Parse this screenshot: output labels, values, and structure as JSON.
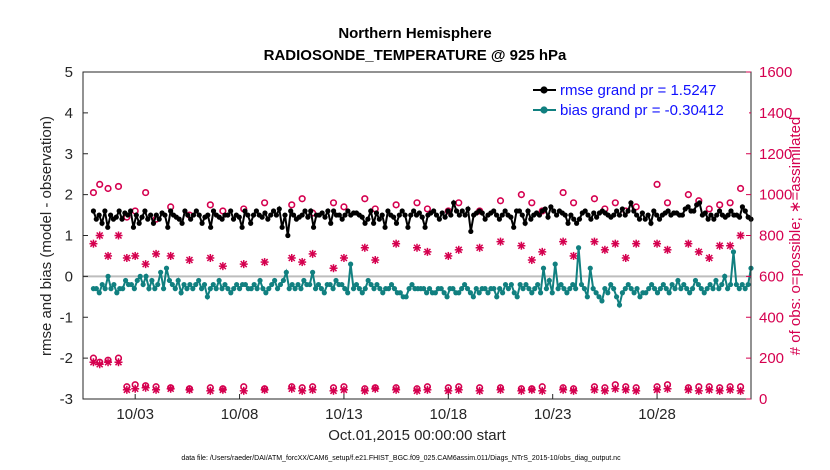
{
  "chart_data": {
    "type": "line",
    "title_line1": "Northern Hemisphere",
    "title_line2": "RADIOSONDE_TEMPERATURE @ 925 hPa",
    "xlabel": "Oct.01,2015 00:00:00 start",
    "ylabel": "rmse and bias (model - observation)",
    "y2label": "# of obs: o=possible; ∗=assimilated",
    "footnote": "data file: /Users/raeder/DAI/ATM_forcXX/CAM6_setup/f.e21.FHIST_BGC.f09_025.CAM6assim.011/Diags_NTrS_2015-10/obs_diag_output.nc",
    "xlim": [
      0.5,
      32.5
    ],
    "ylim": [
      -3,
      5
    ],
    "y2lim": [
      0,
      1600
    ],
    "xticks": [
      3,
      8,
      13,
      18,
      23,
      28
    ],
    "xtick_labels": [
      "10/03",
      "10/08",
      "10/13",
      "10/18",
      "10/23",
      "10/28"
    ],
    "yticks": [
      -3,
      -2,
      -1,
      0,
      1,
      2,
      3,
      4,
      5
    ],
    "y2ticks": [
      0,
      200,
      400,
      600,
      800,
      1000,
      1200,
      1400,
      1600
    ],
    "legend_position": "top-right",
    "colors": {
      "rmse": "#000000",
      "bias": "#118080",
      "obs": "#d5004f",
      "zero": "#bdbdbd"
    },
    "series": [
      {
        "name": "rmse",
        "label": "rmse grand pr = 1.5247",
        "values": [
          1.6,
          1.4,
          1.5,
          1.3,
          1.6,
          1.2,
          1.5,
          1.4,
          1.45,
          1.6,
          1.4,
          1.55,
          1.5,
          1.6,
          1.2,
          1.5,
          1.3,
          1.45,
          1.6,
          1.4,
          1.5,
          1.3,
          1.5,
          1.4,
          1.55,
          1.5,
          1.2,
          1.6,
          1.5,
          1.45,
          1.4,
          1.3,
          1.6,
          1.5,
          1.4,
          1.5,
          1.6,
          1.5,
          1.3,
          1.45,
          1.5,
          1.2,
          1.6,
          1.5,
          1.45,
          1.4,
          1.5,
          1.5,
          1.6,
          1.4,
          1.5,
          1.45,
          1.2,
          1.6,
          1.5,
          1.3,
          1.5,
          1.6,
          1.5,
          1.45,
          1.55,
          1.4,
          1.5,
          1.6,
          1.5,
          1.65,
          1.2,
          1.5,
          1.0,
          1.6,
          1.5,
          1.4,
          1.45,
          1.5,
          1.6,
          1.45,
          1.6,
          1.2,
          1.5,
          1.5,
          1.55,
          1.45,
          1.6,
          1.3,
          1.6,
          1.5,
          1.5,
          1.4,
          1.5,
          1.6,
          1.5,
          1.55,
          1.55,
          1.5,
          1.45,
          1.3,
          1.4,
          1.6,
          1.3,
          1.55,
          1.4,
          1.5,
          1.2,
          1.6,
          1.5,
          1.45,
          1.3,
          1.5,
          1.6,
          1.5,
          1.2,
          1.5,
          1.6,
          1.5,
          1.55,
          1.45,
          1.2,
          1.5,
          1.55,
          1.6,
          1.5,
          1.4,
          1.55,
          1.45,
          1.6,
          1.5,
          1.8,
          1.6,
          1.5,
          1.6,
          1.5,
          1.65,
          1.1,
          1.5,
          1.55,
          1.6,
          1.55,
          1.4,
          1.5,
          1.55,
          1.6,
          1.5,
          1.4,
          1.5,
          1.6,
          1.5,
          1.45,
          1.2,
          1.6,
          1.6,
          1.5,
          1.3,
          1.6,
          1.4,
          1.5,
          1.55,
          1.5,
          1.6,
          1.65,
          1.45,
          1.7,
          1.6,
          1.5,
          1.6,
          1.55,
          1.5,
          1.3,
          1.5,
          1.4,
          1.3,
          1.4,
          1.55,
          1.6,
          1.5,
          1.4,
          1.55,
          1.45,
          1.55,
          1.6,
          1.55,
          1.5,
          1.45,
          1.5,
          1.6,
          1.5,
          1.65,
          1.5,
          1.6,
          1.8,
          1.6,
          1.5,
          1.4,
          1.55,
          1.4,
          1.5,
          1.3,
          1.6,
          1.5,
          1.4,
          1.5,
          1.55,
          1.6,
          1.5,
          1.55,
          1.55,
          1.5,
          1.5,
          1.65,
          1.7,
          1.6,
          1.6,
          1.75,
          1.8,
          1.5,
          1.55,
          1.4,
          1.5,
          1.4,
          1.5,
          1.6,
          1.5,
          1.45,
          1.5,
          1.6,
          1.5,
          1.5,
          1.45,
          1.7,
          1.6,
          1.45,
          1.4
        ]
      },
      {
        "name": "bias",
        "label": "bias grand pr = -0.30412",
        "values": [
          -0.3,
          -0.3,
          -0.4,
          -0.2,
          -0.3,
          0.0,
          -0.3,
          -0.2,
          -0.4,
          -0.3,
          -0.3,
          -0.1,
          -0.2,
          -0.2,
          -0.3,
          -0.1,
          0.0,
          -0.2,
          0.0,
          -0.3,
          -0.1,
          -0.3,
          -0.2,
          0.1,
          -0.3,
          0.2,
          -0.1,
          -0.2,
          -0.3,
          -0.1,
          -0.4,
          -0.2,
          -0.3,
          -0.2,
          -0.3,
          -0.2,
          -0.1,
          -0.3,
          -0.2,
          -0.5,
          -0.3,
          -0.2,
          -0.3,
          -0.1,
          -0.3,
          -0.2,
          -0.3,
          -0.4,
          -0.3,
          -0.2,
          -0.3,
          -0.2,
          -0.2,
          -0.3,
          -0.3,
          -0.2,
          -0.3,
          -0.1,
          -0.3,
          -0.4,
          -0.3,
          -0.2,
          -0.1,
          -0.3,
          -0.2,
          -0.1,
          0.1,
          -0.3,
          -0.2,
          -0.3,
          -0.2,
          -0.3,
          -0.1,
          -0.2,
          -0.2,
          0.1,
          -0.3,
          -0.2,
          -0.3,
          -0.4,
          -0.2,
          -0.2,
          -0.3,
          -0.1,
          -0.2,
          -0.2,
          -0.3,
          -0.4,
          0.3,
          -0.3,
          -0.2,
          -0.3,
          -0.4,
          -0.3,
          -0.1,
          -0.2,
          -0.3,
          -0.2,
          -0.3,
          -0.4,
          -0.3,
          -0.3,
          -0.2,
          -0.3,
          -0.4,
          -0.4,
          -0.5,
          -0.5,
          -0.3,
          -0.2,
          -0.3,
          -0.3,
          -0.3,
          -0.3,
          -0.4,
          -0.3,
          -0.4,
          -0.4,
          -0.3,
          -0.3,
          -0.4,
          -0.5,
          -0.3,
          -0.3,
          -0.4,
          -0.4,
          -0.3,
          -0.2,
          -0.3,
          -0.4,
          -0.5,
          -0.3,
          -0.4,
          -0.3,
          -0.3,
          -0.4,
          -0.3,
          -0.3,
          -0.5,
          -0.3,
          -0.4,
          -0.2,
          -0.3,
          -0.2,
          -0.4,
          -0.5,
          -0.2,
          -0.3,
          -0.2,
          -0.3,
          -0.4,
          -0.3,
          -0.2,
          -0.4,
          0.2,
          -0.3,
          -0.1,
          -0.4,
          0.3,
          -0.3,
          -0.2,
          -0.3,
          -0.4,
          -0.3,
          -0.2,
          -0.3,
          0.7,
          -0.2,
          -0.3,
          -0.5,
          0.2,
          -0.3,
          -0.4,
          -0.5,
          -0.6,
          -0.3,
          -0.4,
          -0.2,
          -0.3,
          -0.5,
          -0.7,
          -0.4,
          -0.3,
          -0.2,
          -0.3,
          -0.4,
          -0.3,
          -0.5,
          -0.4,
          -0.4,
          -0.3,
          -0.2,
          -0.3,
          -0.4,
          -0.3,
          -0.2,
          -0.3,
          -0.4,
          -0.2,
          -0.3,
          -0.1,
          -0.3,
          -0.2,
          -0.3,
          -0.4,
          -0.3,
          -0.1,
          -0.2,
          -0.3,
          -0.4,
          -0.3,
          -0.2,
          -0.3,
          -0.1,
          -0.3,
          -0.2,
          0.0,
          -0.3,
          -0.2,
          0.6,
          -0.2,
          -0.3,
          -0.2,
          -0.3,
          -0.2,
          0.2
        ]
      },
      {
        "name": "possible",
        "axis": "right",
        "values": [
          [
            1,
            1010
          ],
          [
            1.3,
            1050
          ],
          [
            1.7,
            1030
          ],
          [
            2.2,
            1040
          ],
          [
            2.6,
            890
          ],
          [
            3,
            920
          ],
          [
            3.5,
            1010
          ],
          [
            4,
            880
          ],
          [
            4.7,
            940
          ],
          [
            5.6,
            900
          ],
          [
            6.6,
            950
          ],
          [
            7.2,
            920
          ],
          [
            8.2,
            930
          ],
          [
            9.2,
            960
          ],
          [
            10.5,
            950
          ],
          [
            11,
            980
          ],
          [
            11.5,
            910
          ],
          [
            12.5,
            960
          ],
          [
            13,
            940
          ],
          [
            14,
            980
          ],
          [
            14.5,
            930
          ],
          [
            15.5,
            950
          ],
          [
            16.5,
            960
          ],
          [
            17,
            930
          ],
          [
            18,
            920
          ],
          [
            18.5,
            960
          ],
          [
            19.5,
            920
          ],
          [
            20.5,
            970
          ],
          [
            21.5,
            1000
          ],
          [
            22,
            960
          ],
          [
            22.5,
            920
          ],
          [
            23.5,
            1010
          ],
          [
            24,
            960
          ],
          [
            25,
            980
          ],
          [
            25.5,
            930
          ],
          [
            26,
            960
          ],
          [
            26.5,
            920
          ],
          [
            27,
            940
          ],
          [
            28,
            1050
          ],
          [
            28.5,
            960
          ],
          [
            29.5,
            1000
          ],
          [
            30,
            970
          ],
          [
            30.5,
            930
          ],
          [
            31,
            950
          ],
          [
            31.5,
            960
          ],
          [
            32,
            1030
          ]
        ]
      },
      {
        "name": "assimilated",
        "axis": "right",
        "values": [
          [
            1,
            760
          ],
          [
            1.3,
            800
          ],
          [
            1.7,
            700
          ],
          [
            2.2,
            800
          ],
          [
            2.6,
            690
          ],
          [
            3,
            700
          ],
          [
            3.5,
            660
          ],
          [
            4,
            710
          ],
          [
            4.7,
            700
          ],
          [
            5.6,
            680
          ],
          [
            6.6,
            690
          ],
          [
            7.2,
            650
          ],
          [
            8.2,
            660
          ],
          [
            9.2,
            670
          ],
          [
            10.5,
            690
          ],
          [
            11,
            670
          ],
          [
            11.5,
            710
          ],
          [
            12.5,
            640
          ],
          [
            13,
            690
          ],
          [
            14,
            740
          ],
          [
            14.5,
            680
          ],
          [
            15.5,
            760
          ],
          [
            16.5,
            740
          ],
          [
            17,
            720
          ],
          [
            18,
            700
          ],
          [
            18.5,
            730
          ],
          [
            19.5,
            740
          ],
          [
            20.5,
            770
          ],
          [
            21.5,
            750
          ],
          [
            22,
            680
          ],
          [
            22.5,
            720
          ],
          [
            23.5,
            770
          ],
          [
            24,
            700
          ],
          [
            25,
            770
          ],
          [
            25.5,
            730
          ],
          [
            26,
            760
          ],
          [
            26.5,
            690
          ],
          [
            27,
            760
          ],
          [
            28,
            760
          ],
          [
            28.5,
            730
          ],
          [
            29.5,
            760
          ],
          [
            30,
            720
          ],
          [
            30.5,
            690
          ],
          [
            31,
            750
          ],
          [
            31.5,
            750
          ],
          [
            32,
            800
          ]
        ]
      },
      {
        "name": "possible_low",
        "axis": "right",
        "values": [
          [
            1,
            200
          ],
          [
            1.3,
            180
          ],
          [
            1.7,
            190
          ],
          [
            2.2,
            200
          ],
          [
            2.6,
            60
          ],
          [
            3,
            70
          ],
          [
            3.5,
            65
          ],
          [
            4,
            60
          ],
          [
            4.7,
            55
          ],
          [
            5.6,
            50
          ],
          [
            6.6,
            55
          ],
          [
            7.2,
            50
          ],
          [
            8.2,
            60
          ],
          [
            9.2,
            50
          ],
          [
            10.5,
            60
          ],
          [
            11,
            55
          ],
          [
            11.5,
            60
          ],
          [
            12.5,
            55
          ],
          [
            13,
            60
          ],
          [
            14,
            50
          ],
          [
            14.5,
            55
          ],
          [
            15.5,
            55
          ],
          [
            16.5,
            50
          ],
          [
            17,
            60
          ],
          [
            18,
            55
          ],
          [
            18.5,
            60
          ],
          [
            19.5,
            55
          ],
          [
            20.5,
            55
          ],
          [
            21.5,
            50
          ],
          [
            22,
            50
          ],
          [
            22.5,
            60
          ],
          [
            23.5,
            55
          ],
          [
            24,
            50
          ],
          [
            25,
            60
          ],
          [
            25.5,
            55
          ],
          [
            26,
            70
          ],
          [
            26.5,
            60
          ],
          [
            27,
            55
          ],
          [
            28,
            60
          ],
          [
            28.5,
            70
          ],
          [
            29.5,
            55
          ],
          [
            30,
            60
          ],
          [
            30.5,
            60
          ],
          [
            31,
            55
          ],
          [
            31.5,
            60
          ],
          [
            32,
            60
          ]
        ]
      },
      {
        "name": "assimilated_low",
        "axis": "right",
        "values": [
          [
            1,
            180
          ],
          [
            1.3,
            170
          ],
          [
            1.7,
            180
          ],
          [
            2.2,
            180
          ],
          [
            2.6,
            45
          ],
          [
            3,
            50
          ],
          [
            3.5,
            55
          ],
          [
            4,
            45
          ],
          [
            4.7,
            50
          ],
          [
            5.6,
            45
          ],
          [
            6.6,
            40
          ],
          [
            7.2,
            45
          ],
          [
            8.2,
            40
          ],
          [
            9.2,
            45
          ],
          [
            10.5,
            50
          ],
          [
            11,
            40
          ],
          [
            11.5,
            45
          ],
          [
            12.5,
            40
          ],
          [
            13,
            45
          ],
          [
            14,
            40
          ],
          [
            14.5,
            50
          ],
          [
            15.5,
            45
          ],
          [
            16.5,
            40
          ],
          [
            17,
            45
          ],
          [
            18,
            40
          ],
          [
            18.5,
            45
          ],
          [
            19.5,
            40
          ],
          [
            20.5,
            45
          ],
          [
            21.5,
            40
          ],
          [
            22,
            45
          ],
          [
            22.5,
            40
          ],
          [
            23.5,
            45
          ],
          [
            24,
            40
          ],
          [
            25,
            45
          ],
          [
            25.5,
            40
          ],
          [
            26,
            50
          ],
          [
            26.5,
            45
          ],
          [
            27,
            40
          ],
          [
            28,
            45
          ],
          [
            28.5,
            50
          ],
          [
            29.5,
            45
          ],
          [
            30,
            40
          ],
          [
            30.5,
            45
          ],
          [
            31,
            40
          ],
          [
            31.5,
            45
          ],
          [
            32,
            40
          ]
        ]
      }
    ]
  }
}
